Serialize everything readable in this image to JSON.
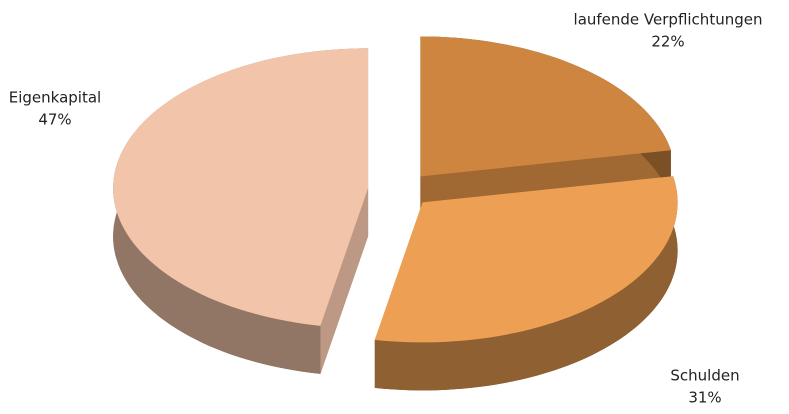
{
  "chart_data": {
    "type": "pie3d",
    "categories": [
      "laufende Verpflichtungen",
      "Schulden",
      "Eigenkapital"
    ],
    "values": [
      22,
      31,
      47
    ],
    "value_labels": [
      "22%",
      "31%",
      "47%"
    ],
    "colors": [
      "#cd8540",
      "#eda054",
      "#f2c4aa"
    ],
    "exploded": true
  }
}
